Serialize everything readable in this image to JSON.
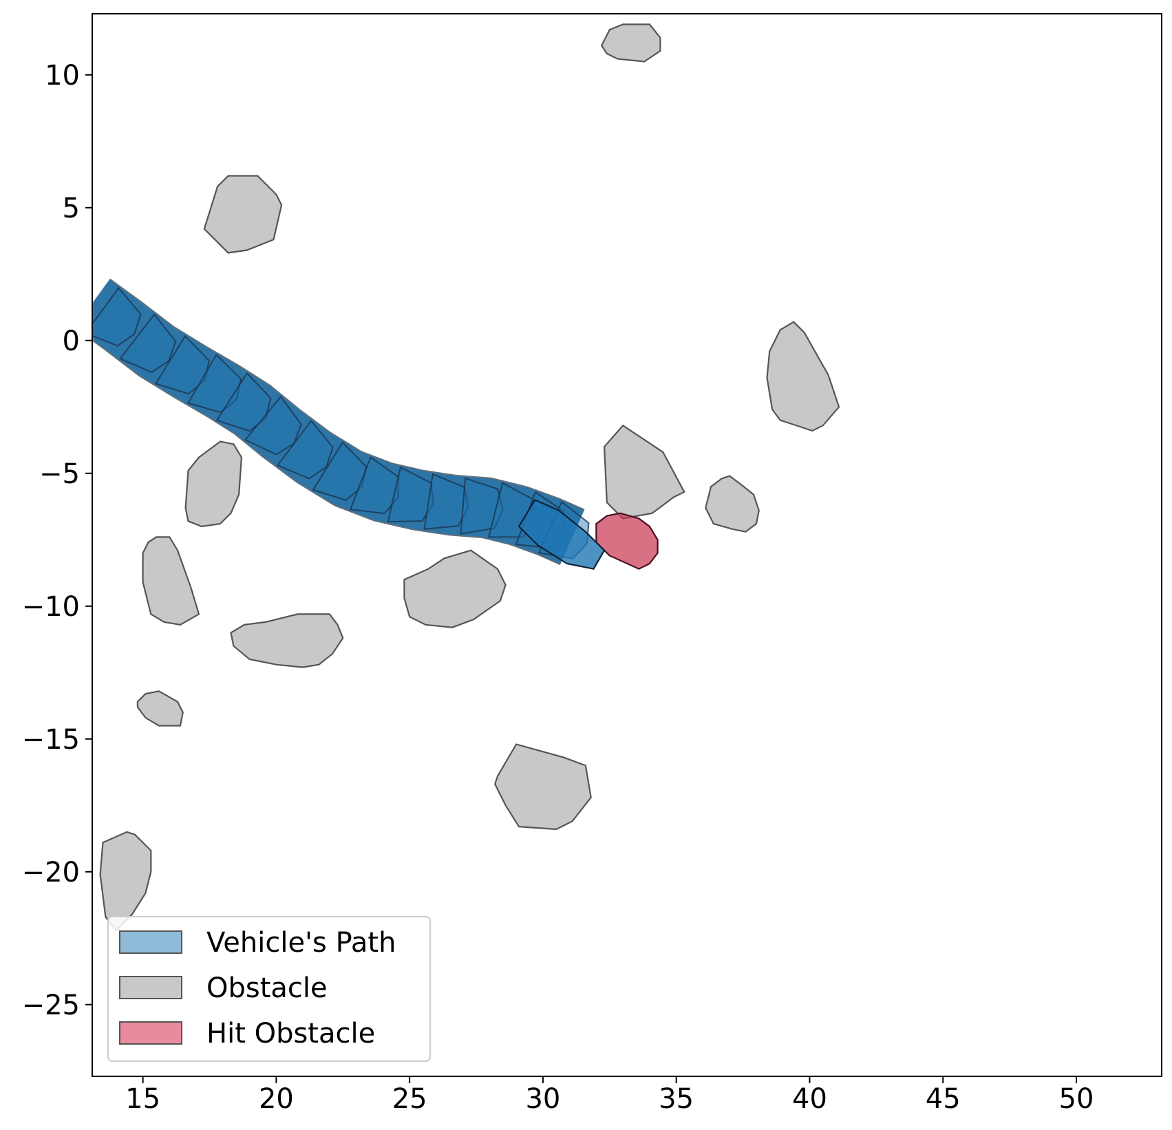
{
  "chart_data": {
    "type": "polygon-map",
    "title": "",
    "xlabel": "",
    "ylabel": "",
    "xlim": [
      13.1,
      53.2
    ],
    "ylim": [
      -27.7,
      12.3
    ],
    "x_ticks": [
      15,
      20,
      25,
      30,
      35,
      40,
      45,
      50
    ],
    "y_ticks": [
      10,
      5,
      0,
      -5,
      -10,
      -15,
      -20,
      -25
    ],
    "x_tick_labels": [
      "15",
      "20",
      "25",
      "30",
      "35",
      "40",
      "45",
      "50"
    ],
    "y_tick_labels": [
      "10",
      "5",
      "0",
      "−5",
      "−10",
      "−15",
      "−20",
      "−25"
    ],
    "grid": false,
    "legend_position": "lower-left",
    "legend": [
      {
        "key": "path",
        "label": "Vehicle's Path",
        "fill": "#1f77b4",
        "fill_opacity": 0.5,
        "stroke": "#333333"
      },
      {
        "key": "obstacle",
        "label": "Obstacle",
        "fill": "#c8c8c8",
        "fill_opacity": 1.0,
        "stroke": "#555555"
      },
      {
        "key": "hit",
        "label": "Hit Obstacle",
        "fill": "#e15a74",
        "fill_opacity": 0.7,
        "stroke": "#555555"
      }
    ],
    "vehicle_path": {
      "color": "#1f77b4",
      "centerline": [
        [
          13.1,
          1.4
        ],
        [
          14.2,
          0.6
        ],
        [
          15.5,
          -0.4
        ],
        [
          16.8,
          -1.2
        ],
        [
          18.0,
          -1.9
        ],
        [
          19.1,
          -2.6
        ],
        [
          20.2,
          -3.5
        ],
        [
          21.4,
          -4.4
        ],
        [
          22.7,
          -5.2
        ],
        [
          24.0,
          -5.7
        ],
        [
          25.3,
          -6.0
        ],
        [
          26.6,
          -6.2
        ],
        [
          27.9,
          -6.3
        ],
        [
          29.1,
          -6.6
        ],
        [
          30.2,
          -7.0
        ],
        [
          31.1,
          -7.4
        ]
      ],
      "final_pose": [
        [
          29.1,
          -7.0
        ],
        [
          29.7,
          -6.0
        ],
        [
          30.6,
          -6.4
        ],
        [
          31.6,
          -7.2
        ],
        [
          32.3,
          -7.9
        ],
        [
          31.9,
          -8.6
        ],
        [
          30.9,
          -8.4
        ],
        [
          29.8,
          -7.7
        ]
      ]
    },
    "obstacles": [
      [
        [
          32.2,
          11.1
        ],
        [
          32.5,
          11.7
        ],
        [
          33.0,
          11.9
        ],
        [
          34.0,
          11.9
        ],
        [
          34.4,
          11.4
        ],
        [
          34.4,
          10.9
        ],
        [
          33.8,
          10.5
        ],
        [
          32.8,
          10.6
        ],
        [
          32.4,
          10.8
        ]
      ],
      [
        [
          17.3,
          4.2
        ],
        [
          17.8,
          5.8
        ],
        [
          18.2,
          6.2
        ],
        [
          19.3,
          6.2
        ],
        [
          20.0,
          5.5
        ],
        [
          20.2,
          5.1
        ],
        [
          19.9,
          3.8
        ],
        [
          18.9,
          3.4
        ],
        [
          18.2,
          3.3
        ]
      ],
      [
        [
          38.6,
          -0.2
        ],
        [
          38.9,
          0.4
        ],
        [
          39.4,
          0.7
        ],
        [
          39.8,
          0.3
        ],
        [
          40.7,
          -1.3
        ],
        [
          41.1,
          -2.5
        ],
        [
          40.5,
          -3.2
        ],
        [
          40.1,
          -3.4
        ],
        [
          38.9,
          -3.0
        ],
        [
          38.6,
          -2.6
        ],
        [
          38.4,
          -1.4
        ],
        [
          38.5,
          -0.4
        ]
      ],
      [
        [
          32.3,
          -4.0
        ],
        [
          33.0,
          -3.2
        ],
        [
          34.5,
          -4.2
        ],
        [
          35.3,
          -5.7
        ],
        [
          34.9,
          -5.9
        ],
        [
          34.1,
          -6.5
        ],
        [
          33.0,
          -6.7
        ],
        [
          32.4,
          -6.1
        ]
      ],
      [
        [
          36.3,
          -5.5
        ],
        [
          36.7,
          -5.2
        ],
        [
          37.0,
          -5.1
        ],
        [
          37.4,
          -5.4
        ],
        [
          37.9,
          -5.8
        ],
        [
          38.1,
          -6.4
        ],
        [
          38.0,
          -6.9
        ],
        [
          37.6,
          -7.2
        ],
        [
          37.1,
          -7.1
        ],
        [
          36.4,
          -6.9
        ],
        [
          36.1,
          -6.3
        ]
      ],
      [
        [
          17.1,
          -4.4
        ],
        [
          17.9,
          -3.8
        ],
        [
          18.4,
          -3.9
        ],
        [
          18.7,
          -4.4
        ],
        [
          18.6,
          -5.8
        ],
        [
          18.3,
          -6.5
        ],
        [
          17.9,
          -6.9
        ],
        [
          17.2,
          -7.0
        ],
        [
          16.7,
          -6.8
        ],
        [
          16.6,
          -6.3
        ],
        [
          16.7,
          -4.9
        ]
      ],
      [
        [
          15.2,
          -7.6
        ],
        [
          15.5,
          -7.4
        ],
        [
          16.0,
          -7.4
        ],
        [
          16.3,
          -7.9
        ],
        [
          16.8,
          -9.3
        ],
        [
          17.1,
          -10.3
        ],
        [
          16.4,
          -10.7
        ],
        [
          15.8,
          -10.6
        ],
        [
          15.3,
          -10.3
        ],
        [
          15.0,
          -9.1
        ],
        [
          15.0,
          -8.0
        ]
      ],
      [
        [
          24.8,
          -9.0
        ],
        [
          25.7,
          -8.6
        ],
        [
          26.3,
          -8.2
        ],
        [
          27.3,
          -7.9
        ],
        [
          28.3,
          -8.6
        ],
        [
          28.6,
          -9.2
        ],
        [
          28.4,
          -9.8
        ],
        [
          27.4,
          -10.5
        ],
        [
          26.6,
          -10.8
        ],
        [
          25.6,
          -10.7
        ],
        [
          25.0,
          -10.4
        ],
        [
          24.8,
          -9.7
        ]
      ],
      [
        [
          18.3,
          -11.0
        ],
        [
          18.8,
          -10.7
        ],
        [
          19.6,
          -10.6
        ],
        [
          20.8,
          -10.3
        ],
        [
          22.0,
          -10.3
        ],
        [
          22.3,
          -10.7
        ],
        [
          22.5,
          -11.2
        ],
        [
          22.1,
          -11.8
        ],
        [
          21.6,
          -12.2
        ],
        [
          21.0,
          -12.3
        ],
        [
          20.0,
          -12.2
        ],
        [
          19.0,
          -12.0
        ],
        [
          18.4,
          -11.5
        ]
      ],
      [
        [
          14.8,
          -13.6
        ],
        [
          15.1,
          -13.3
        ],
        [
          15.6,
          -13.2
        ],
        [
          16.3,
          -13.6
        ],
        [
          16.5,
          -14.0
        ],
        [
          16.4,
          -14.5
        ],
        [
          15.6,
          -14.5
        ],
        [
          15.1,
          -14.2
        ],
        [
          14.8,
          -13.8
        ]
      ],
      [
        [
          28.3,
          -16.4
        ],
        [
          29.0,
          -15.2
        ],
        [
          30.8,
          -15.7
        ],
        [
          31.6,
          -16.0
        ],
        [
          31.8,
          -17.2
        ],
        [
          31.1,
          -18.1
        ],
        [
          30.5,
          -18.4
        ],
        [
          29.1,
          -18.3
        ],
        [
          28.6,
          -17.5
        ],
        [
          28.2,
          -16.7
        ]
      ],
      [
        [
          13.5,
          -18.9
        ],
        [
          14.4,
          -18.5
        ],
        [
          14.7,
          -18.6
        ],
        [
          15.3,
          -19.2
        ],
        [
          15.3,
          -20.0
        ],
        [
          15.1,
          -20.8
        ],
        [
          14.6,
          -21.6
        ],
        [
          14.0,
          -22.2
        ],
        [
          13.6,
          -21.7
        ],
        [
          13.4,
          -20.1
        ]
      ]
    ],
    "hit_obstacle": {
      "color": "#c8344f",
      "polygon": [
        [
          32.0,
          -6.9
        ],
        [
          32.4,
          -6.6
        ],
        [
          32.9,
          -6.5
        ],
        [
          33.6,
          -6.7
        ],
        [
          34.0,
          -7.0
        ],
        [
          34.3,
          -7.5
        ],
        [
          34.3,
          -8.0
        ],
        [
          34.0,
          -8.4
        ],
        [
          33.6,
          -8.6
        ],
        [
          32.5,
          -8.1
        ],
        [
          32.0,
          -7.6
        ]
      ]
    }
  }
}
